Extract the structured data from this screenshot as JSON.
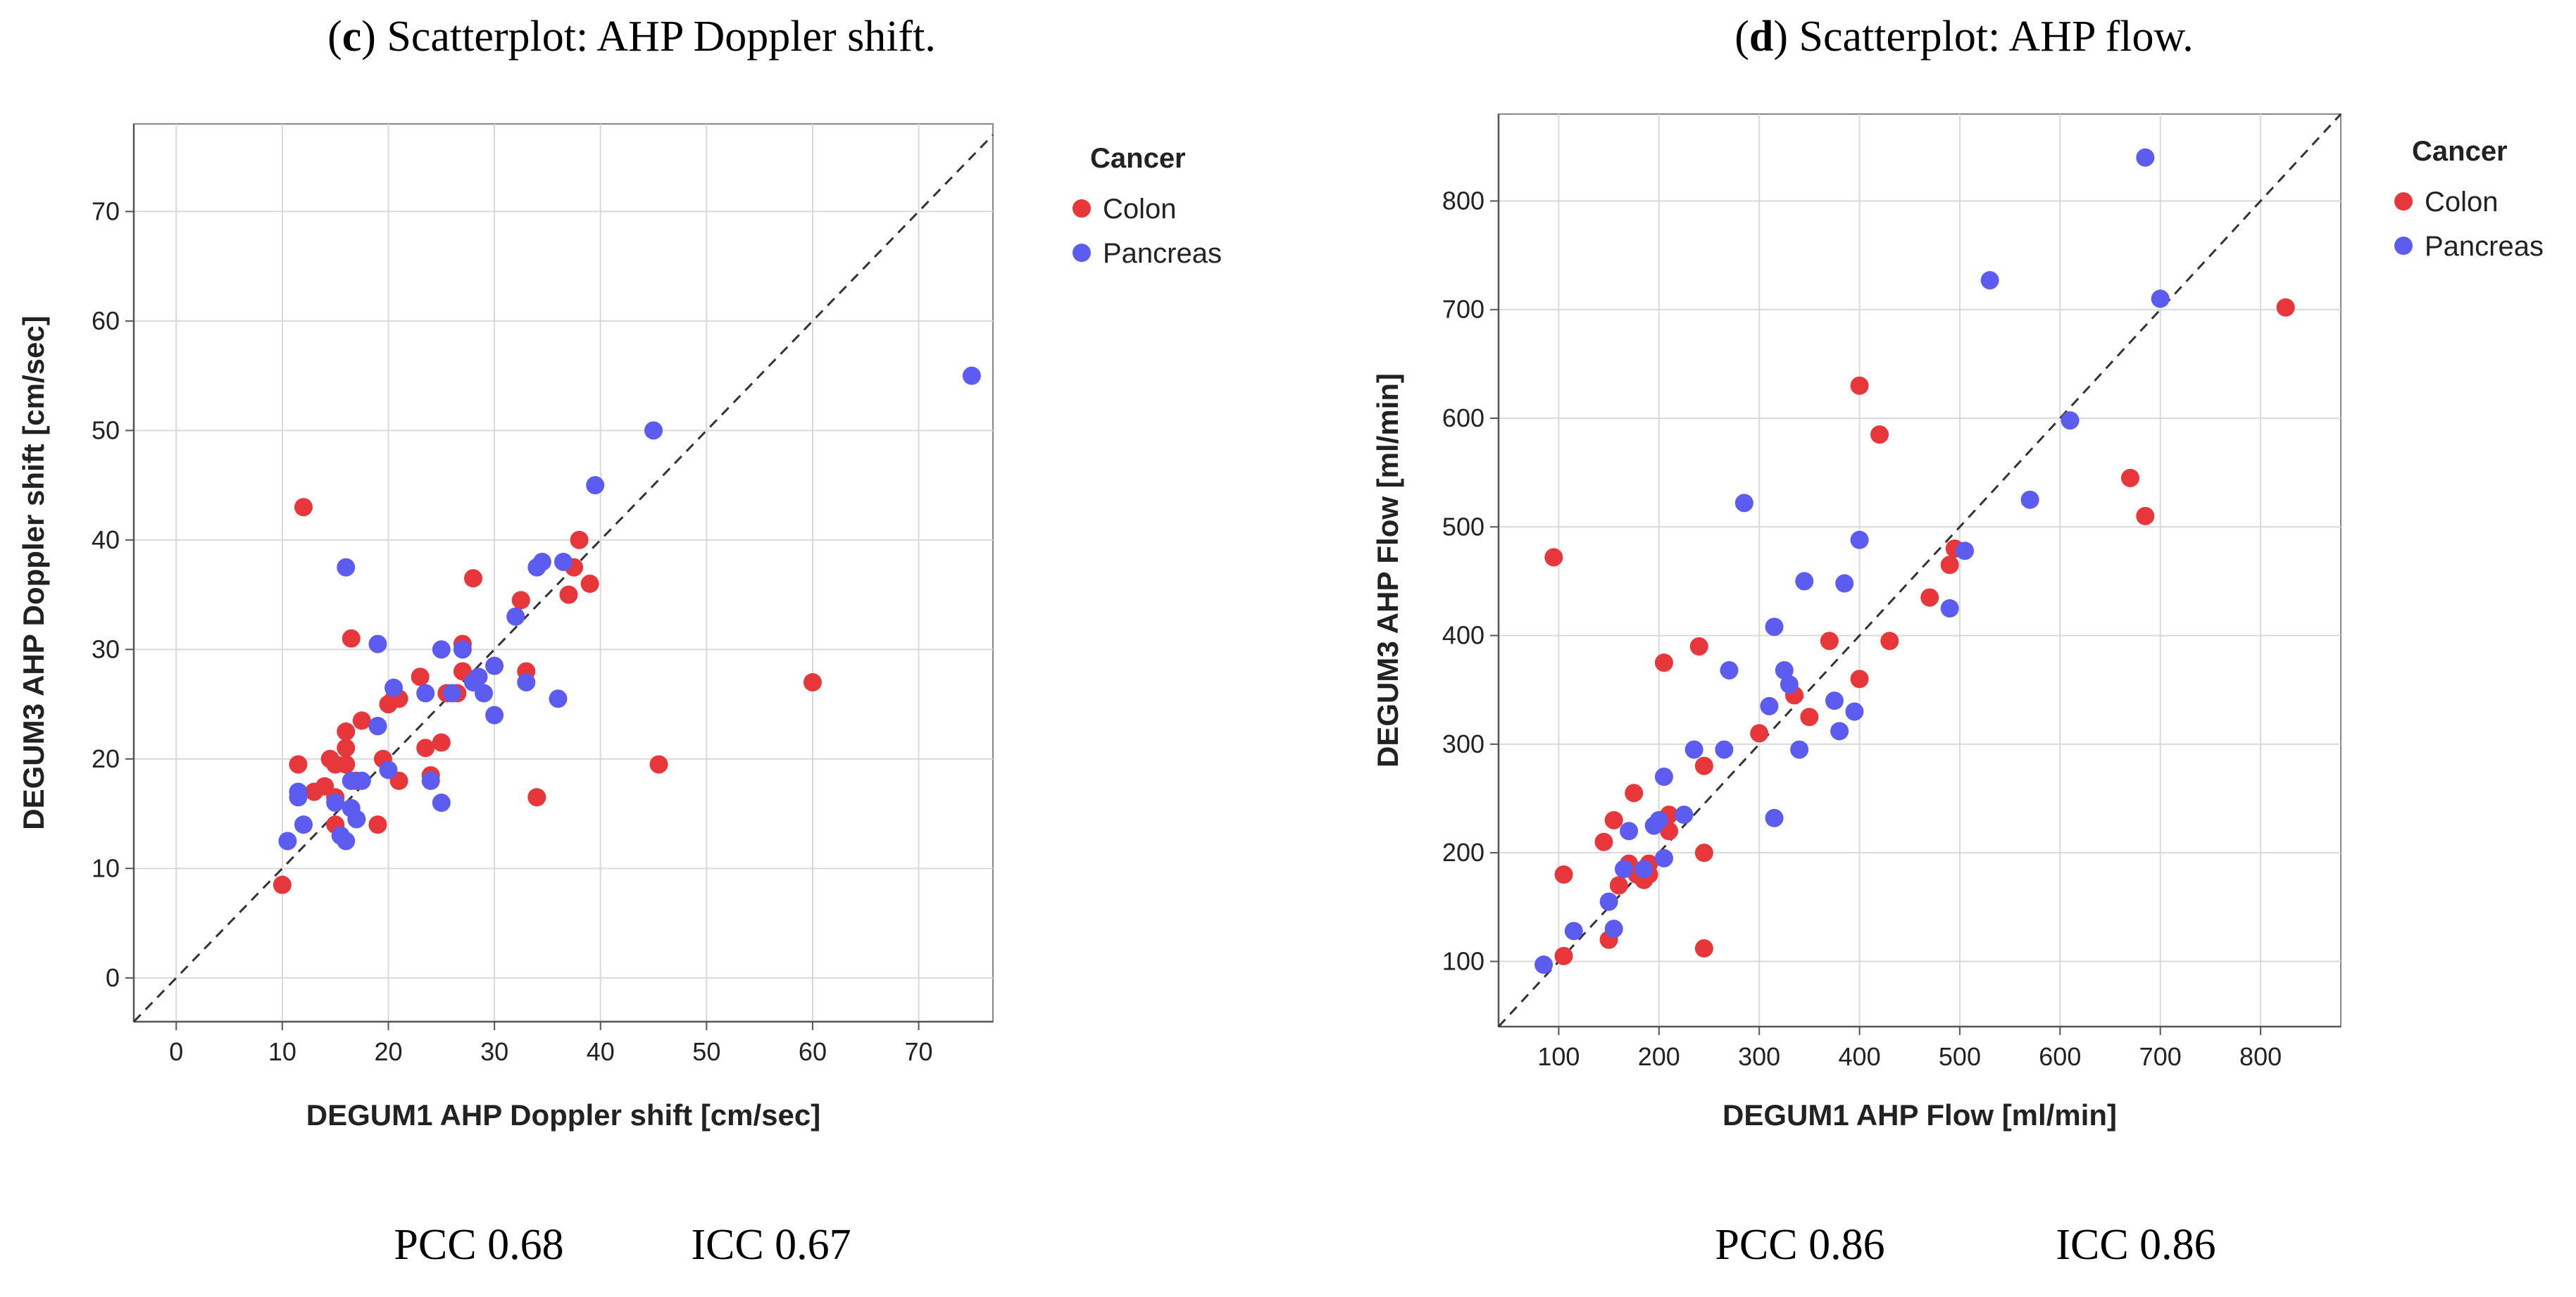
{
  "colors": {
    "colon": "#e8373b",
    "pancreas": "#5c5cf0",
    "grid": "#d9d9d9",
    "axis": "#555555",
    "identity": "#333333"
  },
  "chart_data": [
    {
      "type": "scatter",
      "panel_letter": "c",
      "title": "Scatterplot: AHP Doppler shift.",
      "xlabel": "DEGUM1 AHP Doppler shift [cm/sec]",
      "ylabel": "DEGUM3 AHP Doppler shift [cm/sec]",
      "xlim": [
        -4,
        77
      ],
      "ylim": [
        -4,
        78
      ],
      "xticks": [
        0,
        10,
        20,
        30,
        40,
        50,
        60,
        70
      ],
      "yticks": [
        0,
        10,
        20,
        30,
        40,
        50,
        60,
        70
      ],
      "identity_line": true,
      "grid": true,
      "legend": {
        "title": "Cancer",
        "position": "right",
        "entries": [
          "Colon",
          "Pancreas"
        ]
      },
      "stats": {
        "pcc": "PCC 0.68",
        "icc": "ICC 0.67"
      },
      "series": [
        {
          "name": "Colon",
          "color_key": "colon",
          "points": [
            [
              10,
              8.5
            ],
            [
              12,
              43
            ],
            [
              11.5,
              19.5
            ],
            [
              13,
              17
            ],
            [
              14,
              17.5
            ],
            [
              14.5,
              20
            ],
            [
              15,
              19.5
            ],
            [
              15,
              14
            ],
            [
              15.5,
              13
            ],
            [
              15,
              16.5
            ],
            [
              16,
              19.5
            ],
            [
              16,
              21
            ],
            [
              16,
              22.5
            ],
            [
              16.5,
              31
            ],
            [
              17,
              18
            ],
            [
              17.5,
              23.5
            ],
            [
              19,
              14
            ],
            [
              19,
              23
            ],
            [
              19.5,
              20
            ],
            [
              20,
              25
            ],
            [
              20.5,
              25.5
            ],
            [
              21,
              25.5
            ],
            [
              21,
              18
            ],
            [
              23,
              27.5
            ],
            [
              23.5,
              21
            ],
            [
              24,
              18.5
            ],
            [
              25,
              21.5
            ],
            [
              25.5,
              26
            ],
            [
              26.5,
              26
            ],
            [
              27,
              28
            ],
            [
              27,
              30.5
            ],
            [
              28,
              36.5
            ],
            [
              32.5,
              34.5
            ],
            [
              33,
              28
            ],
            [
              34,
              16.5
            ],
            [
              37,
              35
            ],
            [
              37.5,
              37.5
            ],
            [
              38,
              40
            ],
            [
              39,
              36
            ],
            [
              45.5,
              19.5
            ],
            [
              60,
              27
            ]
          ]
        },
        {
          "name": "Pancreas",
          "color_key": "pancreas",
          "points": [
            [
              10.5,
              12.5
            ],
            [
              11.5,
              17
            ],
            [
              11.5,
              16.5
            ],
            [
              12,
              14
            ],
            [
              15,
              16
            ],
            [
              15.5,
              13
            ],
            [
              16,
              37.5
            ],
            [
              16,
              12.5
            ],
            [
              16.5,
              15.5
            ],
            [
              16.5,
              18
            ],
            [
              17,
              14.5
            ],
            [
              17.5,
              18
            ],
            [
              19,
              30.5
            ],
            [
              19,
              23
            ],
            [
              20,
              19
            ],
            [
              20.5,
              26.5
            ],
            [
              23.5,
              26
            ],
            [
              24,
              18
            ],
            [
              25,
              30
            ],
            [
              25,
              16
            ],
            [
              26,
              26
            ],
            [
              27,
              30
            ],
            [
              28,
              27
            ],
            [
              28.5,
              27.5
            ],
            [
              29,
              26
            ],
            [
              30,
              28.5
            ],
            [
              30,
              24
            ],
            [
              32,
              33
            ],
            [
              33,
              27
            ],
            [
              34,
              37.5
            ],
            [
              34.5,
              38
            ],
            [
              36,
              25.5
            ],
            [
              36.5,
              38
            ],
            [
              39.5,
              45
            ],
            [
              45,
              50
            ],
            [
              75,
              55
            ]
          ]
        }
      ]
    },
    {
      "type": "scatter",
      "panel_letter": "d",
      "title": "Scatterplot: AHP flow.",
      "xlabel": "DEGUM1 AHP Flow [ml/min]",
      "ylabel": "DEGUM3 AHP Flow [ml/min]",
      "xlim": [
        40,
        880
      ],
      "ylim": [
        40,
        880
      ],
      "xticks": [
        100,
        200,
        300,
        400,
        500,
        600,
        700,
        800
      ],
      "yticks": [
        100,
        200,
        300,
        400,
        500,
        600,
        700,
        800
      ],
      "identity_line": true,
      "grid": true,
      "legend": {
        "title": "Cancer",
        "position": "right",
        "entries": [
          "Colon",
          "Pancreas"
        ]
      },
      "stats": {
        "pcc": "PCC 0.86",
        "icc": "ICC 0.86"
      },
      "series": [
        {
          "name": "Colon",
          "color_key": "colon",
          "points": [
            [
              95,
              472
            ],
            [
              105,
              105
            ],
            [
              105,
              180
            ],
            [
              145,
              210
            ],
            [
              150,
              120
            ],
            [
              155,
              230
            ],
            [
              160,
              170
            ],
            [
              170,
              190
            ],
            [
              175,
              255
            ],
            [
              178,
              180
            ],
            [
              185,
              175
            ],
            [
              190,
              190
            ],
            [
              190,
              180
            ],
            [
              205,
              375
            ],
            [
              210,
              235
            ],
            [
              210,
              220
            ],
            [
              240,
              390
            ],
            [
              245,
              280
            ],
            [
              245,
              200
            ],
            [
              245,
              112
            ],
            [
              300,
              310
            ],
            [
              335,
              345
            ],
            [
              350,
              325
            ],
            [
              370,
              395
            ],
            [
              400,
              360
            ],
            [
              400,
              630
            ],
            [
              420,
              585
            ],
            [
              430,
              395
            ],
            [
              470,
              435
            ],
            [
              490,
              465
            ],
            [
              495,
              480
            ],
            [
              670,
              545
            ],
            [
              685,
              510
            ],
            [
              825,
              702
            ]
          ]
        },
        {
          "name": "Pancreas",
          "color_key": "pancreas",
          "points": [
            [
              85,
              97
            ],
            [
              115,
              128
            ],
            [
              150,
              155
            ],
            [
              155,
              130
            ],
            [
              165,
              185
            ],
            [
              170,
              220
            ],
            [
              185,
              185
            ],
            [
              195,
              225
            ],
            [
              200,
              230
            ],
            [
              205,
              270
            ],
            [
              205,
              195
            ],
            [
              225,
              235
            ],
            [
              235,
              295
            ],
            [
              265,
              295
            ],
            [
              270,
              368
            ],
            [
              285,
              522
            ],
            [
              310,
              335
            ],
            [
              315,
              408
            ],
            [
              315,
              232
            ],
            [
              325,
              368
            ],
            [
              330,
              355
            ],
            [
              340,
              295
            ],
            [
              345,
              450
            ],
            [
              375,
              340
            ],
            [
              380,
              312
            ],
            [
              385,
              448
            ],
            [
              395,
              330
            ],
            [
              400,
              488
            ],
            [
              490,
              425
            ],
            [
              505,
              478
            ],
            [
              530,
              727
            ],
            [
              570,
              525
            ],
            [
              610,
              598
            ],
            [
              685,
              840
            ],
            [
              700,
              710
            ]
          ]
        }
      ]
    }
  ]
}
